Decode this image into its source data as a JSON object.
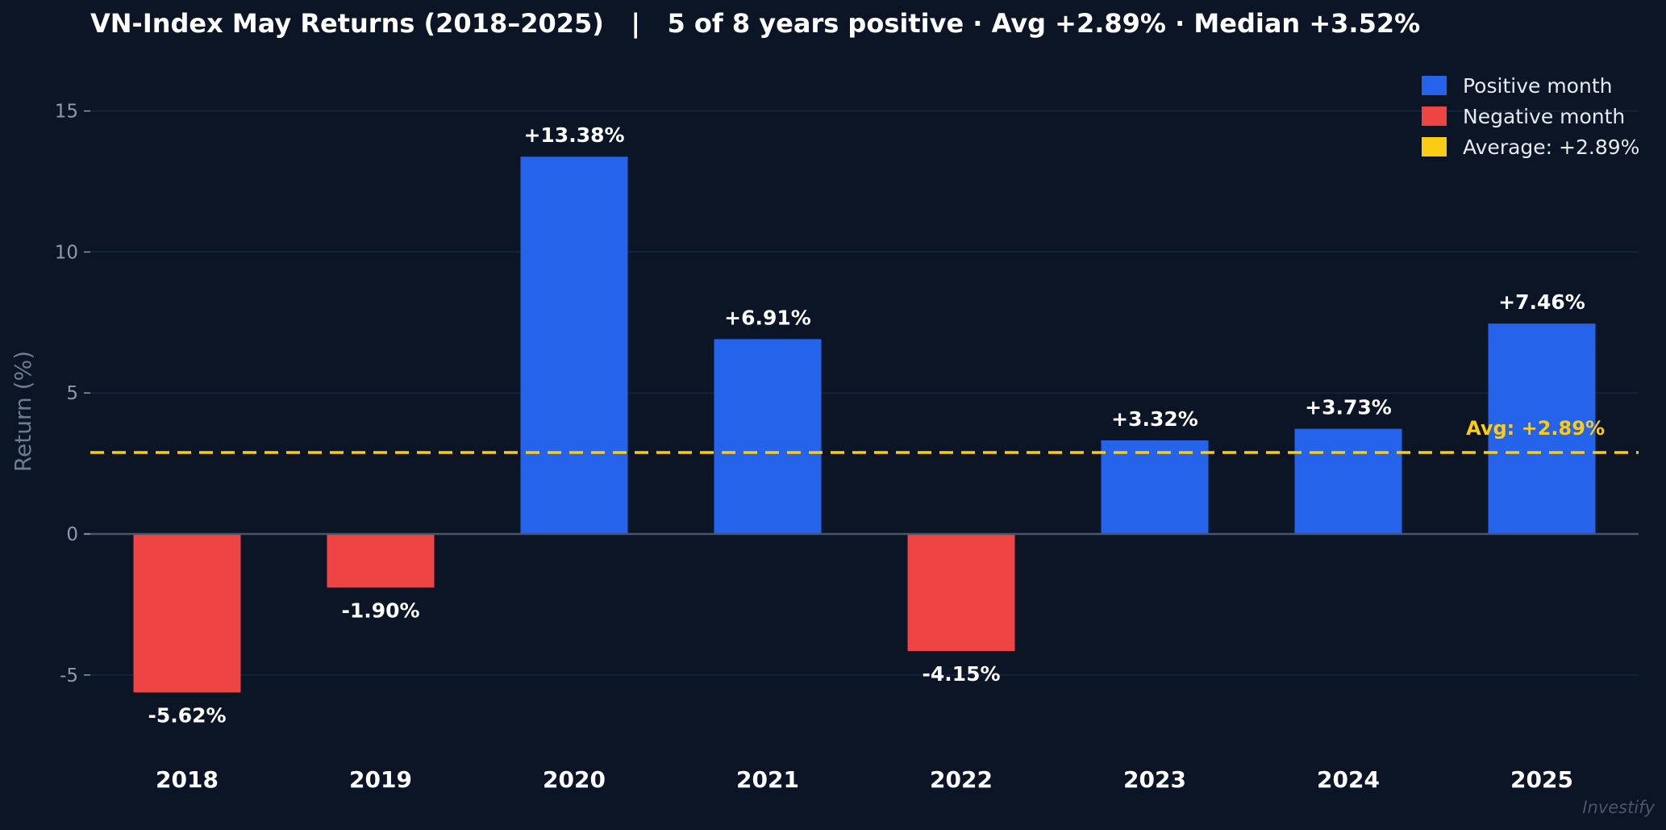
{
  "chart_data": {
    "type": "bar",
    "title": "VN-Index May Returns (2018–2025)   |   5 of 8 years positive · Avg +2.89% · Median +3.52%",
    "categories": [
      "2018",
      "2019",
      "2020",
      "2021",
      "2022",
      "2023",
      "2024",
      "2025"
    ],
    "values": [
      -5.62,
      -1.9,
      13.38,
      6.91,
      -4.15,
      3.32,
      3.73,
      7.46
    ],
    "value_labels": [
      "-5.62%",
      "-1.90%",
      "+13.38%",
      "+6.91%",
      "-4.15%",
      "+3.32%",
      "+3.73%",
      "+7.46%"
    ],
    "xlabel": "",
    "ylabel": "Return (%)",
    "ylim": [
      -8,
      16
    ],
    "yticks": [
      -5,
      0,
      5,
      10,
      15
    ],
    "average": 2.89,
    "average_label": "Avg: +2.89%",
    "grid": true,
    "legend_position": "top-right",
    "legend": [
      {
        "label": "Positive month",
        "color": "#2563eb"
      },
      {
        "label": "Negative month",
        "color": "#ef4444"
      },
      {
        "label": "Average: +2.89%",
        "color": "#facc15"
      }
    ],
    "colors": {
      "positive": "#2563eb",
      "negative": "#ef4444",
      "average": "#facc15",
      "background": "#0b1526",
      "grid": "#1a2a44",
      "zero_line": "#4b5566"
    },
    "watermark": "Investify"
  }
}
